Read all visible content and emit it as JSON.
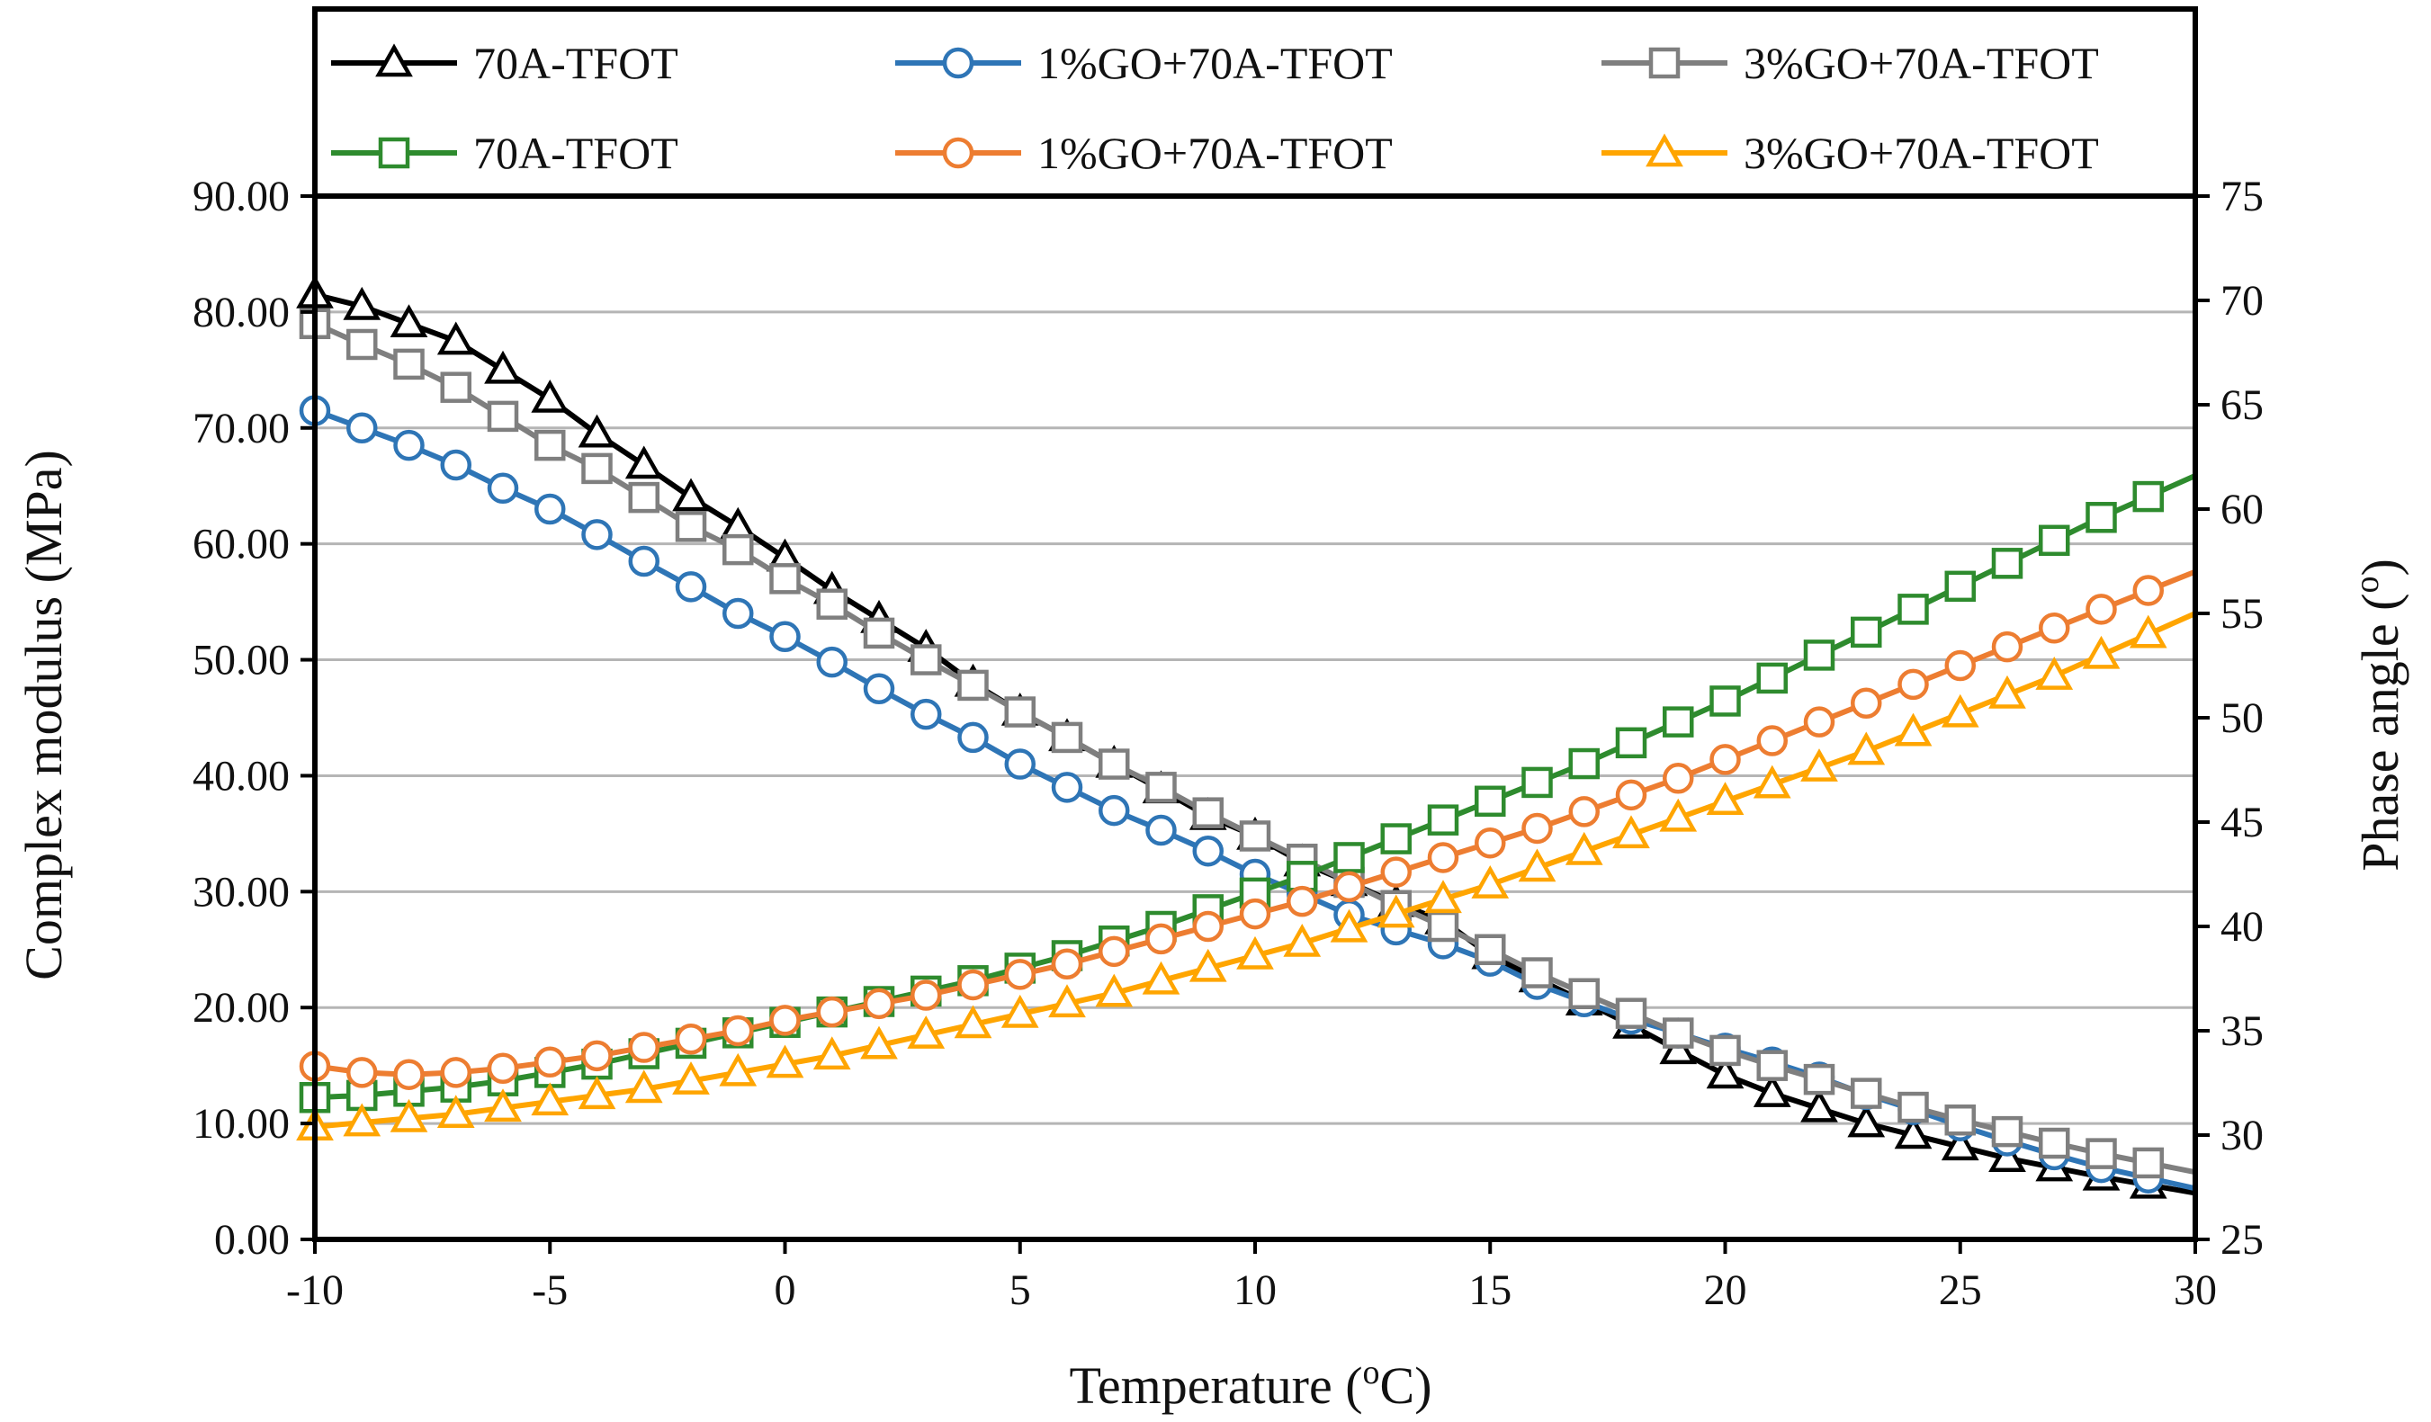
{
  "chart_data": {
    "type": "line",
    "title": "",
    "xlabel": "Temperature (oC)",
    "xlabel_main": "Temperature (",
    "xlabel_sup": "o",
    "xlabel_tail": "C)",
    "ylabel_left": "Complex modulus (MPa)",
    "ylabel_right": "Phase angle (o)",
    "ylabel_right_main": "Phase angle (",
    "ylabel_right_sup": "o",
    "ylabel_right_tail": ")",
    "xlim": [
      -10,
      30
    ],
    "ylim_left": [
      0,
      90
    ],
    "ylim_right": [
      25,
      75
    ],
    "xticks": [
      "-10",
      "-5",
      "0",
      "5",
      "10",
      "15",
      "20",
      "25",
      "30"
    ],
    "yticks_left": [
      "0.00",
      "10.00",
      "20.00",
      "30.00",
      "40.00",
      "50.00",
      "60.00",
      "70.00",
      "80.00",
      "90.00"
    ],
    "yticks_right": [
      "25",
      "30",
      "35",
      "40",
      "45",
      "50",
      "55",
      "60",
      "65",
      "70",
      "75"
    ],
    "grid": "horizontal",
    "legend_position": "top",
    "x": [
      -10,
      -9,
      -8,
      -7,
      -6,
      -5,
      -4,
      -3,
      -2,
      -1,
      0,
      1,
      2,
      3,
      4,
      5,
      6,
      7,
      8,
      9,
      10,
      11,
      12,
      13,
      14,
      15,
      16,
      17,
      18,
      19,
      20,
      21,
      22,
      23,
      24,
      25,
      26,
      27,
      28,
      29
    ],
    "series": [
      {
        "name": "70A-TFOT",
        "axis": "left",
        "marker": "triangle",
        "color": "#000000",
        "values": [
          81.5,
          80.5,
          79.0,
          77.5,
          75.0,
          72.5,
          69.5,
          66.8,
          64.0,
          61.5,
          58.8,
          56.0,
          53.5,
          51.0,
          48.0,
          45.5,
          43.3,
          41.0,
          38.8,
          36.5,
          34.8,
          32.5,
          30.8,
          29.0,
          27.5,
          24.5,
          22.5,
          20.5,
          18.5,
          16.3,
          14.2,
          12.6,
          11.3,
          10.0,
          9.0,
          8.0,
          7.0,
          6.2,
          5.4,
          4.7
        ]
      },
      {
        "name": "1%GO+70A-TFOT",
        "axis": "left",
        "marker": "circle",
        "color": "#2e75b6",
        "values": [
          71.5,
          70.0,
          68.5,
          66.8,
          64.8,
          63.0,
          60.8,
          58.5,
          56.3,
          54.0,
          52.0,
          49.8,
          47.5,
          45.3,
          43.3,
          41.0,
          39.0,
          37.0,
          35.3,
          33.5,
          31.5,
          29.8,
          28.0,
          26.7,
          25.5,
          24.0,
          22.0,
          20.5,
          19.0,
          17.8,
          16.5,
          15.3,
          14.0,
          12.5,
          11.2,
          9.8,
          8.5,
          7.3,
          6.2,
          5.3
        ]
      },
      {
        "name": "3%GO+70A-TFOT",
        "axis": "left",
        "marker": "square",
        "color": "#7f7f7f",
        "values": [
          79.0,
          77.2,
          75.5,
          73.5,
          71.0,
          68.5,
          66.5,
          64.0,
          61.5,
          59.5,
          57.0,
          54.8,
          52.3,
          50.0,
          47.8,
          45.5,
          43.3,
          41.0,
          39.0,
          36.8,
          34.8,
          32.8,
          30.8,
          28.8,
          27.0,
          25.0,
          23.0,
          21.2,
          19.5,
          17.8,
          16.3,
          15.0,
          13.8,
          12.6,
          11.4,
          10.3,
          9.3,
          8.3,
          7.4,
          6.6
        ]
      },
      {
        "name": "70A-TFOT",
        "axis": "right",
        "marker": "square-open",
        "color": "#2e8b2e",
        "values": [
          31.8,
          31.9,
          32.1,
          32.3,
          32.6,
          33.0,
          33.4,
          33.9,
          34.4,
          34.9,
          35.4,
          35.9,
          36.4,
          36.9,
          37.4,
          38.0,
          38.6,
          39.3,
          40.0,
          40.8,
          41.6,
          42.4,
          43.3,
          44.2,
          45.1,
          46.0,
          46.9,
          47.8,
          48.8,
          49.8,
          50.8,
          51.9,
          53.0,
          54.1,
          55.2,
          56.3,
          57.4,
          58.5,
          59.6,
          60.6
        ]
      },
      {
        "name": "1%GO+70A-TFOT",
        "axis": "right",
        "marker": "circle-open",
        "color": "#ed7d31",
        "values": [
          33.3,
          33.0,
          32.9,
          33.0,
          33.2,
          33.5,
          33.8,
          34.2,
          34.6,
          35.0,
          35.5,
          35.9,
          36.3,
          36.7,
          37.2,
          37.7,
          38.2,
          38.8,
          39.4,
          40.0,
          40.6,
          41.2,
          41.9,
          42.6,
          43.3,
          44.0,
          44.7,
          45.5,
          46.3,
          47.1,
          48.0,
          48.9,
          49.8,
          50.7,
          51.6,
          52.5,
          53.4,
          54.3,
          55.2,
          56.1
        ]
      },
      {
        "name": "3%GO+70A-TFOT",
        "axis": "right",
        "marker": "triangle-open",
        "color": "#ffa500",
        "values": [
          30.4,
          30.6,
          30.8,
          31.0,
          31.3,
          31.6,
          31.9,
          32.2,
          32.6,
          33.0,
          33.4,
          33.8,
          34.3,
          34.8,
          35.3,
          35.8,
          36.3,
          36.8,
          37.4,
          38.0,
          38.6,
          39.2,
          39.9,
          40.6,
          41.3,
          42.0,
          42.8,
          43.6,
          44.4,
          45.2,
          46.0,
          46.8,
          47.6,
          48.4,
          49.3,
          50.2,
          51.1,
          52.0,
          53.0,
          54.0
        ]
      }
    ]
  }
}
